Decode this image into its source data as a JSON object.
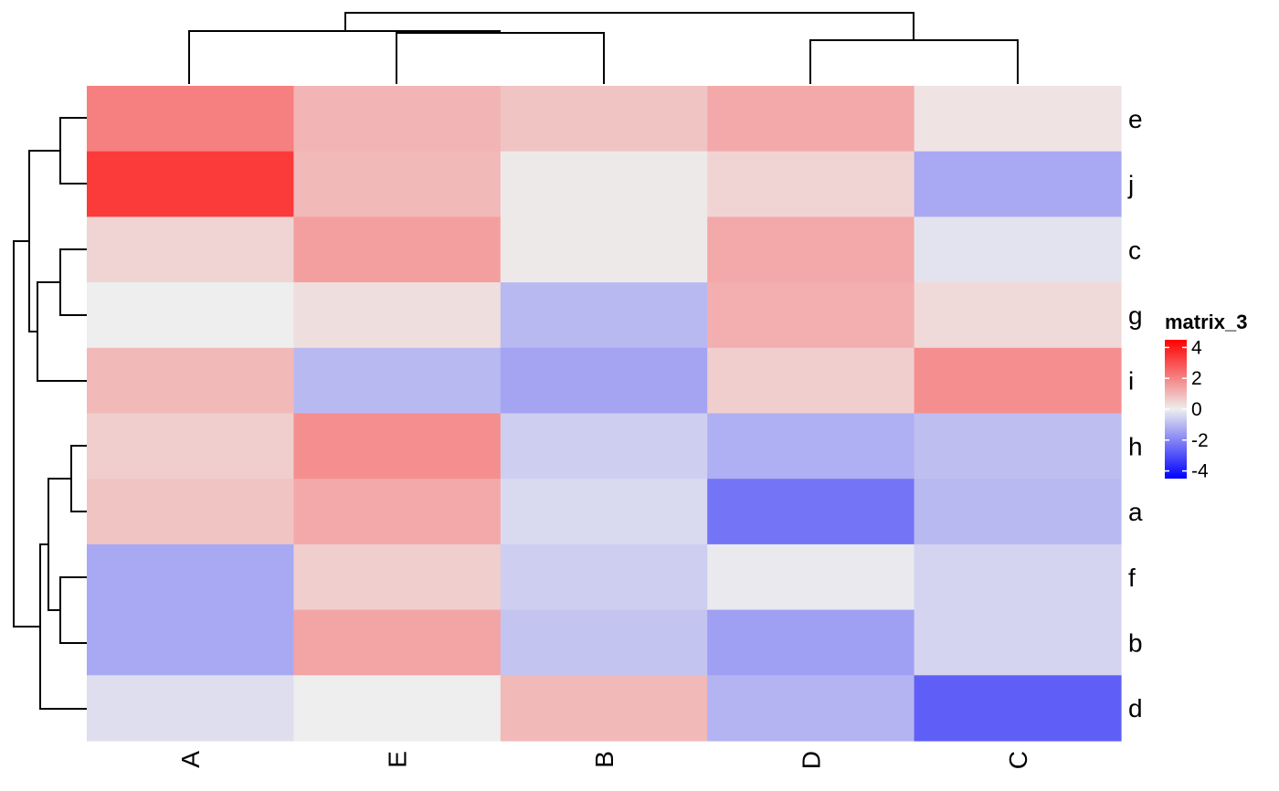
{
  "chart_data": {
    "type": "heatmap",
    "columns": [
      "A",
      "E",
      "B",
      "D",
      "C"
    ],
    "rows": [
      "e",
      "j",
      "c",
      "g",
      "i",
      "h",
      "a",
      "f",
      "b",
      "d"
    ],
    "values": [
      [
        2.1,
        1.1,
        0.8,
        1.3,
        0.2
      ],
      [
        3.4,
        1.0,
        0.1,
        0.5,
        -1.3
      ],
      [
        0.5,
        1.5,
        0.1,
        1.3,
        -0.2
      ],
      [
        0.0,
        0.3,
        -1.0,
        1.2,
        0.4
      ],
      [
        1.0,
        -1.0,
        -1.4,
        0.6,
        1.8
      ],
      [
        0.6,
        1.8,
        -0.6,
        -1.2,
        -0.9
      ],
      [
        0.8,
        1.3,
        -0.4,
        -2.3,
        -1.0
      ],
      [
        -1.3,
        0.6,
        -0.6,
        -0.1,
        -0.5
      ],
      [
        -1.3,
        1.4,
        -0.8,
        -1.5,
        -0.5
      ],
      [
        -0.3,
        0.0,
        1.0,
        -1.1,
        -2.7
      ]
    ],
    "legend": {
      "title": "matrix_3",
      "ticks": [
        "4",
        "2",
        "0",
        "-2",
        "-4"
      ],
      "tick_values": [
        4,
        2,
        0,
        -2,
        -4
      ],
      "range": [
        -4.5,
        4.5
      ],
      "colors": {
        "low": "#0000ff",
        "mid": "#eeeeee",
        "high": "#ff0000"
      },
      "placement": "right"
    },
    "column_dendrogram": true,
    "row_dendrogram": true
  }
}
